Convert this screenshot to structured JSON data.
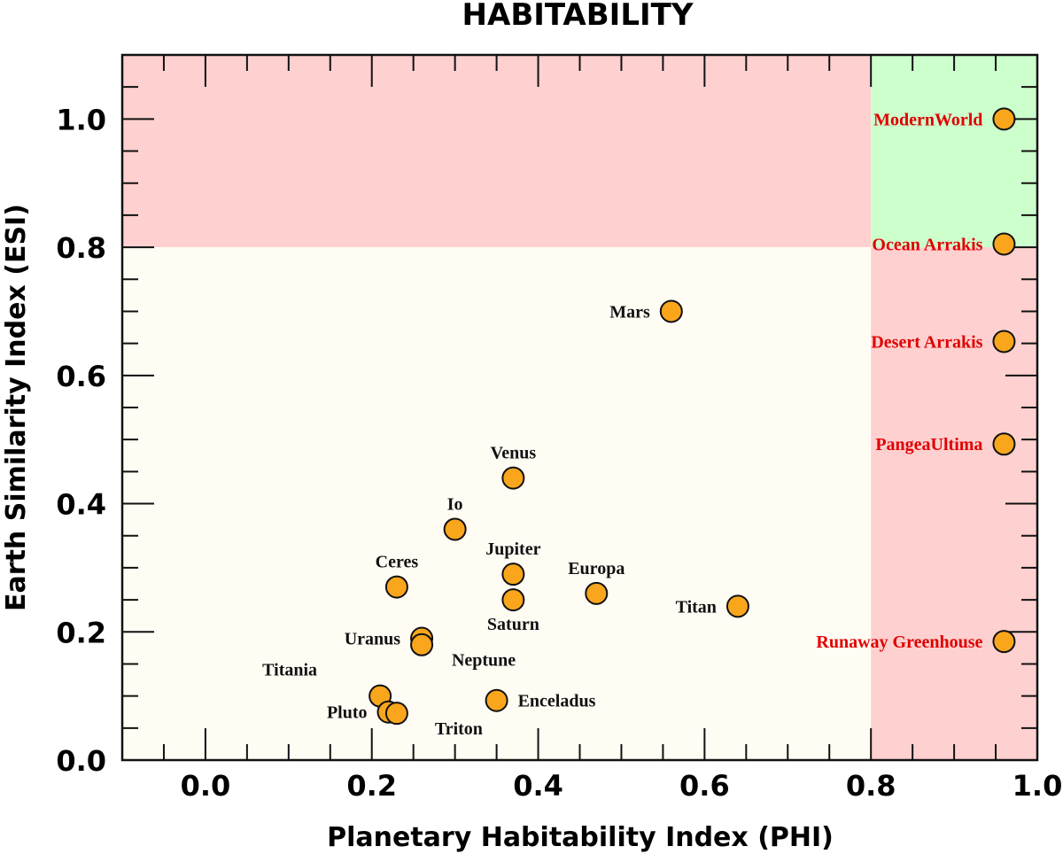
{
  "chart_data": {
    "type": "scatter",
    "title": "HABITABILITY",
    "xlabel": "Planetary Habitability Index (PHI)",
    "ylabel": "Earth Similarity Index (ESI)",
    "xlim": [
      -0.1,
      1.0
    ],
    "ylim": [
      0.0,
      1.1
    ],
    "xticks": [
      "0.0",
      "0.2",
      "0.4",
      "0.6",
      "0.8",
      "1.0"
    ],
    "yticks": [
      "0.0",
      "0.2",
      "0.4",
      "0.6",
      "0.8",
      "1.0"
    ],
    "regions": [
      {
        "name": "low-phi-high-esi",
        "x": [
          -0.1,
          0.8
        ],
        "y": [
          0.8,
          1.1
        ],
        "color": "#ffd0d0"
      },
      {
        "name": "low-phi-low-esi",
        "x": [
          -0.1,
          0.8
        ],
        "y": [
          0,
          0.8
        ],
        "color": "#fffcf4"
      },
      {
        "name": "habitable",
        "x": [
          0.8,
          1.0
        ],
        "y": [
          0.8,
          1.1
        ],
        "color": "#ccffcc"
      },
      {
        "name": "high-phi-low-esi",
        "x": [
          0.8,
          1.0
        ],
        "y": [
          0,
          0.8
        ],
        "color": "#ffd0d0"
      }
    ],
    "marker_color": "#f9a61c",
    "points": [
      {
        "name": "ModernWorld",
        "x": 0.96,
        "y": 1.0,
        "label_color": "#e00000",
        "label_pos": "left"
      },
      {
        "name": "Ocean Arrakis",
        "x": 0.96,
        "y": 0.805,
        "label_color": "#e00000",
        "label_pos": "left"
      },
      {
        "name": "Desert Arrakis",
        "x": 0.96,
        "y": 0.653,
        "label_color": "#e00000",
        "label_pos": "left"
      },
      {
        "name": "PangeaUltima",
        "x": 0.96,
        "y": 0.493,
        "label_color": "#e00000",
        "label_pos": "left"
      },
      {
        "name": "Runaway Greenhouse",
        "x": 0.96,
        "y": 0.185,
        "label_color": "#e00000",
        "label_pos": "left"
      },
      {
        "name": "Mars",
        "x": 0.56,
        "y": 0.7,
        "label_color": "#111111",
        "label_pos": "left"
      },
      {
        "name": "Venus",
        "x": 0.37,
        "y": 0.44,
        "label_color": "#111111",
        "label_pos": "above"
      },
      {
        "name": "Io",
        "x": 0.3,
        "y": 0.36,
        "label_color": "#111111",
        "label_pos": "above"
      },
      {
        "name": "Jupiter",
        "x": 0.37,
        "y": 0.29,
        "label_color": "#111111",
        "label_pos": "above"
      },
      {
        "name": "Saturn",
        "x": 0.37,
        "y": 0.25,
        "label_color": "#111111",
        "label_pos": "below"
      },
      {
        "name": "Europa",
        "x": 0.47,
        "y": 0.26,
        "label_color": "#111111",
        "label_pos": "above"
      },
      {
        "name": "Titan",
        "x": 0.64,
        "y": 0.24,
        "label_color": "#111111",
        "label_pos": "left"
      },
      {
        "name": "Ceres",
        "x": 0.23,
        "y": 0.27,
        "label_color": "#111111",
        "label_pos": "above"
      },
      {
        "name": "Uranus",
        "x": 0.26,
        "y": 0.19,
        "label_color": "#111111",
        "label_pos": "left"
      },
      {
        "name": "Neptune",
        "x": 0.26,
        "y": 0.18,
        "label_color": "#111111",
        "label_pos": "below-right"
      },
      {
        "name": "Titania",
        "x": 0.21,
        "y": 0.1,
        "label_color": "#111111",
        "label_pos": "upper-left"
      },
      {
        "name": "Pluto",
        "x": 0.22,
        "y": 0.075,
        "label_color": "#111111",
        "label_pos": "left"
      },
      {
        "name": "Triton",
        "x": 0.23,
        "y": 0.073,
        "label_color": "#111111",
        "label_pos": "below-right"
      },
      {
        "name": "Enceladus",
        "x": 0.35,
        "y": 0.093,
        "label_color": "#111111",
        "label_pos": "right"
      }
    ]
  }
}
